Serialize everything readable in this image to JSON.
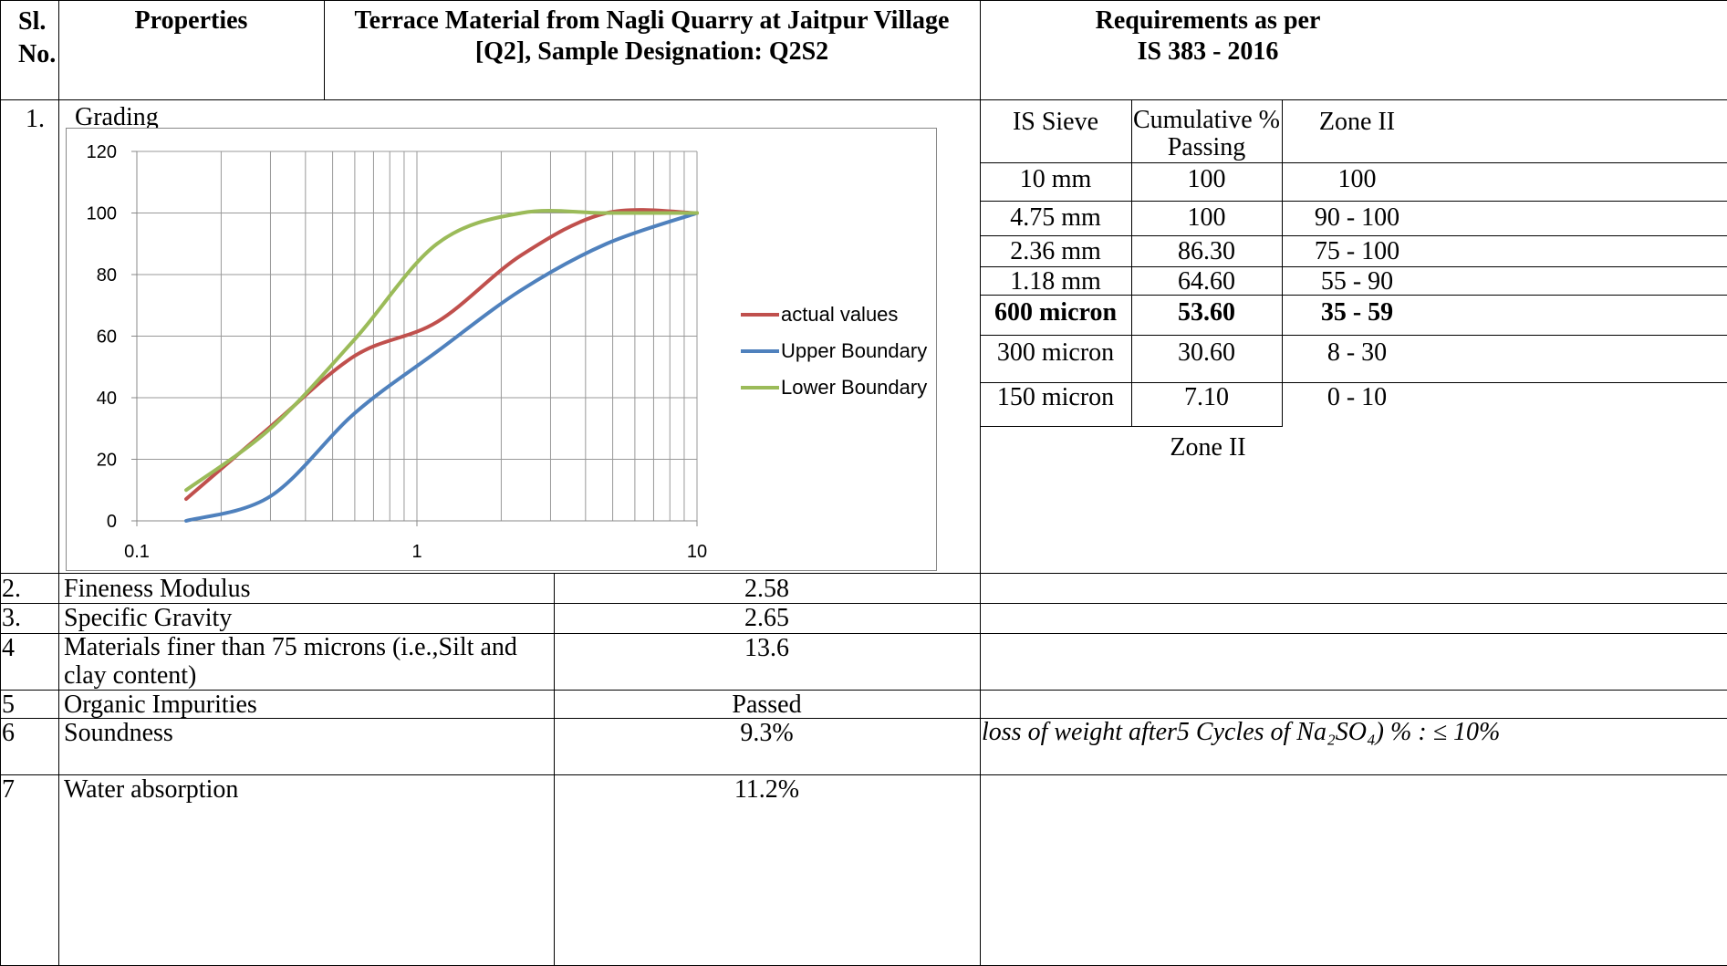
{
  "header": {
    "sl_no": "Sl. No.",
    "properties": "Properties",
    "material_line1": "Terrace Material from Nagli Quarry at Jaitpur Village",
    "material_line2": "[Q2], Sample Designation: Q2S2",
    "req_line1": "Requirements as per",
    "req_line2": "IS 383 - 2016"
  },
  "row1": {
    "sl": "1.",
    "property": "Grading",
    "sieve_table": {
      "headers": [
        "IS Sieve",
        "Cumulative % Passing",
        "Zone II"
      ],
      "rows": [
        [
          "10 mm",
          "100",
          "100"
        ],
        [
          "4.75 mm",
          "100",
          "90 - 100"
        ],
        [
          "2.36 mm",
          "86.30",
          "75 - 100"
        ],
        [
          "1.18 mm",
          "64.60",
          "55 - 90"
        ],
        [
          "600 micron",
          "53.60",
          "35 - 59"
        ],
        [
          "300 micron",
          "30.60",
          "8 - 30"
        ],
        [
          "150 micron",
          "7.10",
          "0 - 10"
        ]
      ],
      "bold_row": "600 micron",
      "footer": "Zone II"
    }
  },
  "rows": [
    {
      "sl": "2.",
      "property": "Fineness Modulus",
      "value": "2.58",
      "requirement": ""
    },
    {
      "sl": "3.",
      "property": "Specific Gravity",
      "value": "2.65",
      "requirement": ""
    },
    {
      "sl": "4",
      "property": "Materials finer than 75 microns (i.e.,Silt and clay content)",
      "value": "13.6",
      "requirement": ""
    },
    {
      "sl": "5",
      "property": "Organic Impurities",
      "value": "Passed",
      "requirement": ""
    },
    {
      "sl": "6",
      "property": "Soundness",
      "value": "9.3%",
      "requirement": "loss of weight after5 Cycles of Na₂SO₄) % : ≤ 10%"
    },
    {
      "sl": "7",
      "property": "Water absorption",
      "value": "11.2%",
      "requirement": ""
    }
  ],
  "chart_data": {
    "type": "line",
    "x_scale": "log",
    "xlim": [
      0.1,
      10
    ],
    "ylim": [
      0,
      120
    ],
    "x_ticks": [
      "0.1",
      "1",
      "10"
    ],
    "y_ticks": [
      "0",
      "20",
      "40",
      "60",
      "80",
      "100",
      "120"
    ],
    "grid": "vertical log gridlines and horizontal gridlines",
    "legend_position": "right",
    "series": [
      {
        "name": "actual values",
        "color": "#c0504d",
        "x": [
          0.15,
          0.3,
          0.6,
          1.18,
          2.36,
          4.75,
          10
        ],
        "y": [
          7.1,
          30.6,
          53.6,
          64.6,
          86.3,
          100,
          100
        ]
      },
      {
        "name": "Upper Boundary",
        "color": "#4f81bd",
        "x": [
          0.15,
          0.3,
          0.6,
          1.18,
          2.36,
          4.75,
          10
        ],
        "y": [
          0,
          8,
          35,
          55,
          75,
          90,
          100
        ]
      },
      {
        "name": "Lower Boundary",
        "color": "#9bbb59",
        "x": [
          0.15,
          0.3,
          0.6,
          1.18,
          2.36,
          4.75,
          10
        ],
        "y": [
          10,
          30,
          59,
          90,
          100,
          100,
          100
        ]
      }
    ]
  }
}
